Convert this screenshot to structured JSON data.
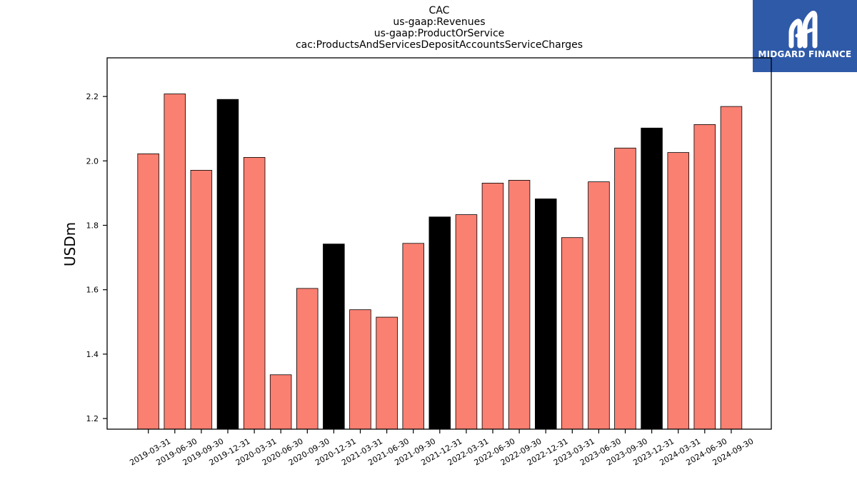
{
  "title_lines": [
    "CAC",
    "us-gaap:Revenues",
    "us-gaap:ProductOrService",
    "cac:ProductsAndServicesDepositAccountsServiceCharges"
  ],
  "logo": {
    "text": "MIDGARD FINANCE",
    "background": "#2f5aa8"
  },
  "chart_data": {
    "type": "bar",
    "title": "CAC\nus-gaap:Revenues\nus-gaap:ProductOrService\ncac:ProductsAndServicesDepositAccountsServiceCharges",
    "xlabel": "",
    "ylabel": "USDm",
    "ylim": [
      1.167,
      2.32
    ],
    "yticks": [
      1.2,
      1.4,
      1.6,
      1.8,
      2.0,
      2.2
    ],
    "ytick_labels": [
      "1.2",
      "1.4",
      "1.6",
      "1.8",
      "2.0",
      "2.2"
    ],
    "grid": false,
    "categories": [
      "2019-03-31",
      "2019-06-30",
      "2019-09-30",
      "2019-12-31",
      "2020-03-31",
      "2020-06-30",
      "2020-09-30",
      "2020-12-31",
      "2021-03-31",
      "2021-06-30",
      "2021-09-30",
      "2021-12-31",
      "2022-03-31",
      "2022-06-30",
      "2022-09-30",
      "2022-12-31",
      "2023-03-31",
      "2023-06-30",
      "2023-09-30",
      "2023-12-31",
      "2024-03-31",
      "2024-06-30",
      "2024-09-30"
    ],
    "values": [
      2.022,
      2.208,
      1.971,
      2.191,
      2.011,
      1.336,
      1.604,
      1.742,
      1.538,
      1.515,
      1.744,
      1.826,
      1.833,
      1.931,
      1.94,
      1.882,
      1.762,
      1.935,
      2.04,
      2.102,
      2.026,
      2.113,
      2.169
    ],
    "colors": {
      "quarter": "#fa8072",
      "year_end": "#000000",
      "edge": "#000000"
    }
  }
}
